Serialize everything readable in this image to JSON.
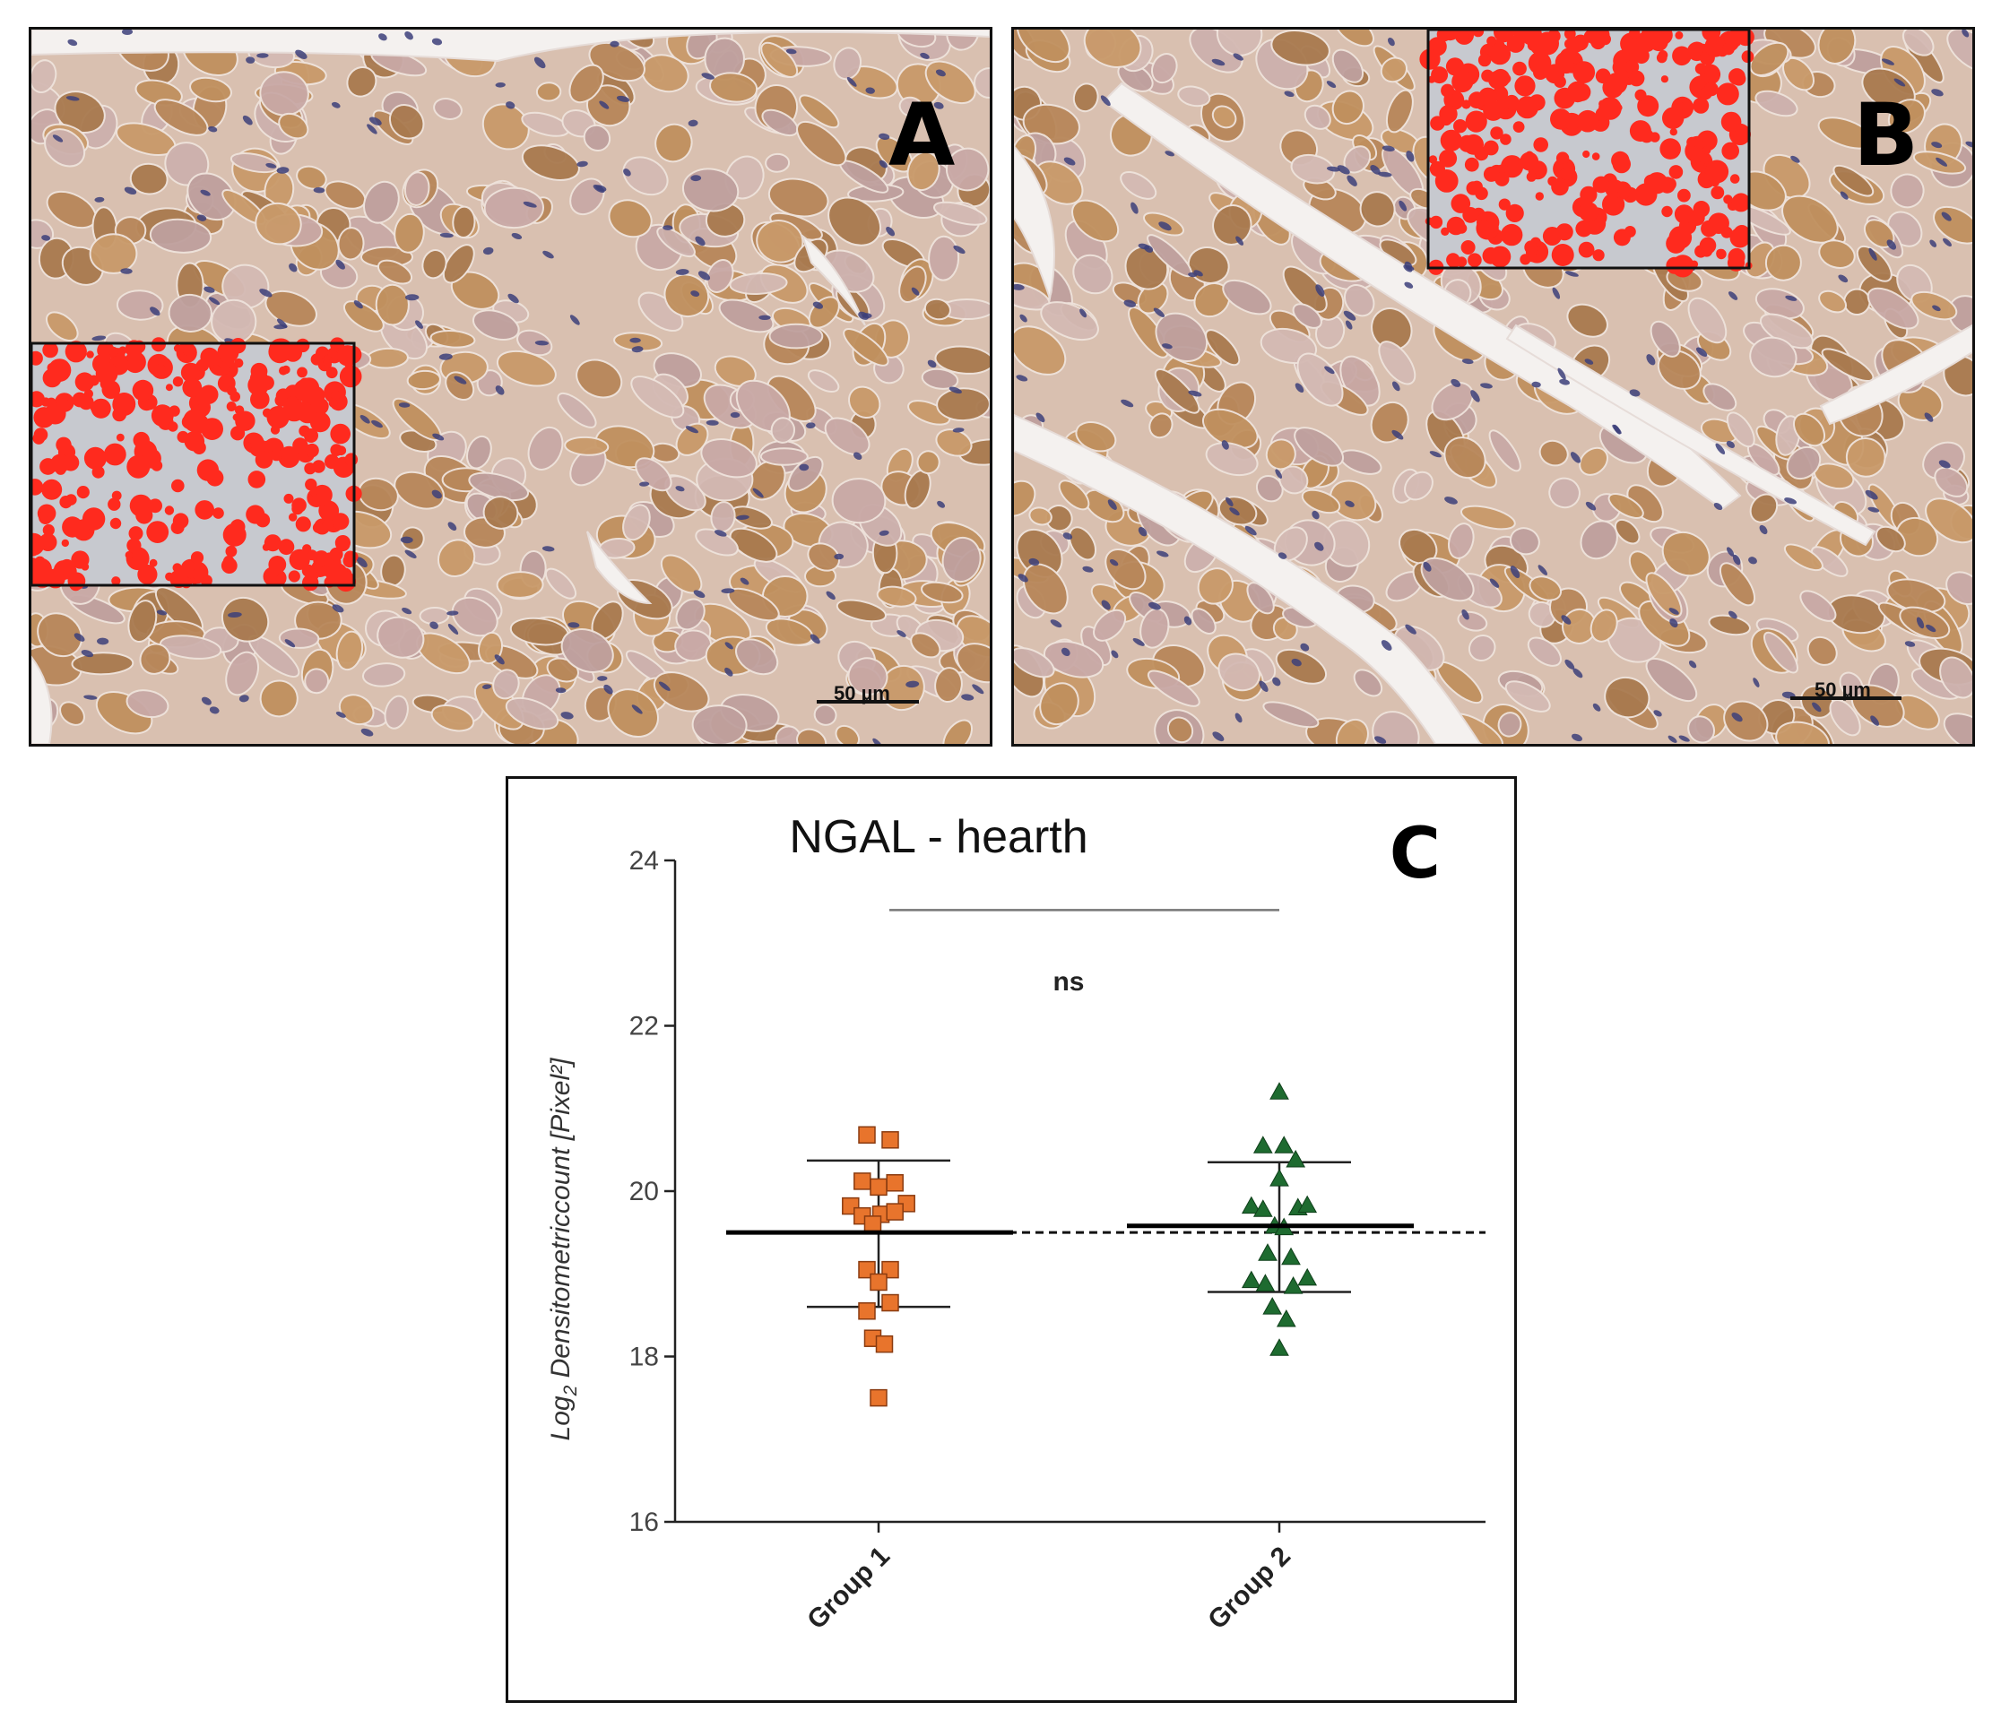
{
  "figure": {
    "panels": [
      {
        "letter": "A",
        "scale_label": "50 µm"
      },
      {
        "letter": "B",
        "scale_label": "50 µm"
      },
      {
        "letter": "C"
      }
    ],
    "colors": {
      "tissue_brown": "#b8875a",
      "tissue_pink": "#c9a9a6",
      "nuclei": "#3c3f7a",
      "inset_red": "#ff2a1e",
      "group1_marker": "#e8742c",
      "group2_marker": "#1e6b30"
    }
  },
  "chart_data": {
    "type": "scatter",
    "title": "NGAL - hearth",
    "ylabel": "Log2 Densitometriccount [Pixel²]",
    "ylabel_parts": {
      "pre": "Log",
      "sub": "2",
      "post": " Densitometriccount [Pixel²]"
    },
    "xlabel": "",
    "ylim": [
      16,
      24
    ],
    "yticks": [
      16,
      18,
      20,
      22,
      24
    ],
    "categories": [
      "Group 1",
      "Group 2"
    ],
    "grid": false,
    "dashed_reference": 19.5,
    "significance": {
      "label": "ns",
      "between": [
        "Group 1",
        "Group 2"
      ],
      "y": 23.4
    },
    "series": [
      {
        "name": "Group 1",
        "marker": "square",
        "color": "#e8742c",
        "mean": 19.5,
        "sd_upper": 20.37,
        "sd_lower": 18.6,
        "points": [
          {
            "dx": -0.5,
            "y": 20.68
          },
          {
            "dx": 0.5,
            "y": 20.62
          },
          {
            "dx": -0.7,
            "y": 20.12
          },
          {
            "dx": 0.0,
            "y": 20.05
          },
          {
            "dx": 0.7,
            "y": 20.1
          },
          {
            "dx": -1.2,
            "y": 19.82
          },
          {
            "dx": 1.2,
            "y": 19.85
          },
          {
            "dx": -0.7,
            "y": 19.7
          },
          {
            "dx": 0.1,
            "y": 19.72
          },
          {
            "dx": 0.7,
            "y": 19.75
          },
          {
            "dx": -0.25,
            "y": 19.6
          },
          {
            "dx": -0.5,
            "y": 19.05
          },
          {
            "dx": 0.5,
            "y": 19.05
          },
          {
            "dx": 0.0,
            "y": 18.9
          },
          {
            "dx": -0.5,
            "y": 18.55
          },
          {
            "dx": 0.5,
            "y": 18.65
          },
          {
            "dx": -0.25,
            "y": 18.22
          },
          {
            "dx": 0.25,
            "y": 18.15
          },
          {
            "dx": 0.0,
            "y": 17.5
          }
        ]
      },
      {
        "name": "Group 2",
        "marker": "triangle",
        "color": "#1e6b30",
        "mean": 19.58,
        "sd_upper": 20.35,
        "sd_lower": 18.78,
        "points": [
          {
            "dx": 0.0,
            "y": 21.2
          },
          {
            "dx": -0.7,
            "y": 20.55
          },
          {
            "dx": 0.2,
            "y": 20.55
          },
          {
            "dx": 0.7,
            "y": 20.38
          },
          {
            "dx": 0.0,
            "y": 20.15
          },
          {
            "dx": -1.2,
            "y": 19.82
          },
          {
            "dx": -0.7,
            "y": 19.78
          },
          {
            "dx": 0.8,
            "y": 19.8
          },
          {
            "dx": 1.2,
            "y": 19.83
          },
          {
            "dx": -0.2,
            "y": 19.58
          },
          {
            "dx": 0.2,
            "y": 19.56
          },
          {
            "dx": -0.5,
            "y": 19.25
          },
          {
            "dx": 0.5,
            "y": 19.2
          },
          {
            "dx": -1.2,
            "y": 18.92
          },
          {
            "dx": -0.6,
            "y": 18.88
          },
          {
            "dx": 0.6,
            "y": 18.85
          },
          {
            "dx": 1.2,
            "y": 18.95
          },
          {
            "dx": -0.3,
            "y": 18.6
          },
          {
            "dx": 0.3,
            "y": 18.45
          },
          {
            "dx": 0.0,
            "y": 18.1
          }
        ]
      }
    ]
  }
}
